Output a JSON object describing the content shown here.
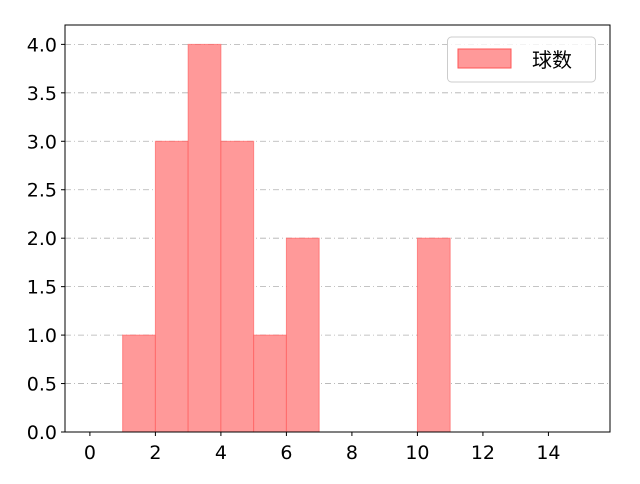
{
  "chart_data": {
    "type": "bar",
    "subtype": "histogram",
    "bins": [
      {
        "start": 1,
        "end": 2,
        "value": 1
      },
      {
        "start": 2,
        "end": 3,
        "value": 3
      },
      {
        "start": 3,
        "end": 4,
        "value": 4
      },
      {
        "start": 4,
        "end": 5,
        "value": 3
      },
      {
        "start": 5,
        "end": 6,
        "value": 1
      },
      {
        "start": 6,
        "end": 7,
        "value": 2
      },
      {
        "start": 10,
        "end": 11,
        "value": 2
      }
    ],
    "series": [
      {
        "name": "球数"
      }
    ],
    "title": "",
    "xlabel": "",
    "ylabel": "",
    "xlim": [
      -0.76,
      15.88
    ],
    "ylim": [
      0,
      4.2
    ],
    "xticks": [
      "0",
      "2",
      "4",
      "6",
      "8",
      "10",
      "12",
      "14"
    ],
    "yticks": [
      "0.0",
      "0.5",
      "1.0",
      "1.5",
      "2.0",
      "2.5",
      "3.0",
      "3.5",
      "4.0"
    ],
    "grid": "horizontal dash-dot",
    "legend": "top-right",
    "colors": {
      "bar_fill": "#ff9999",
      "bar_edge": "#ff5555",
      "grid": "#b0b0b0"
    }
  }
}
